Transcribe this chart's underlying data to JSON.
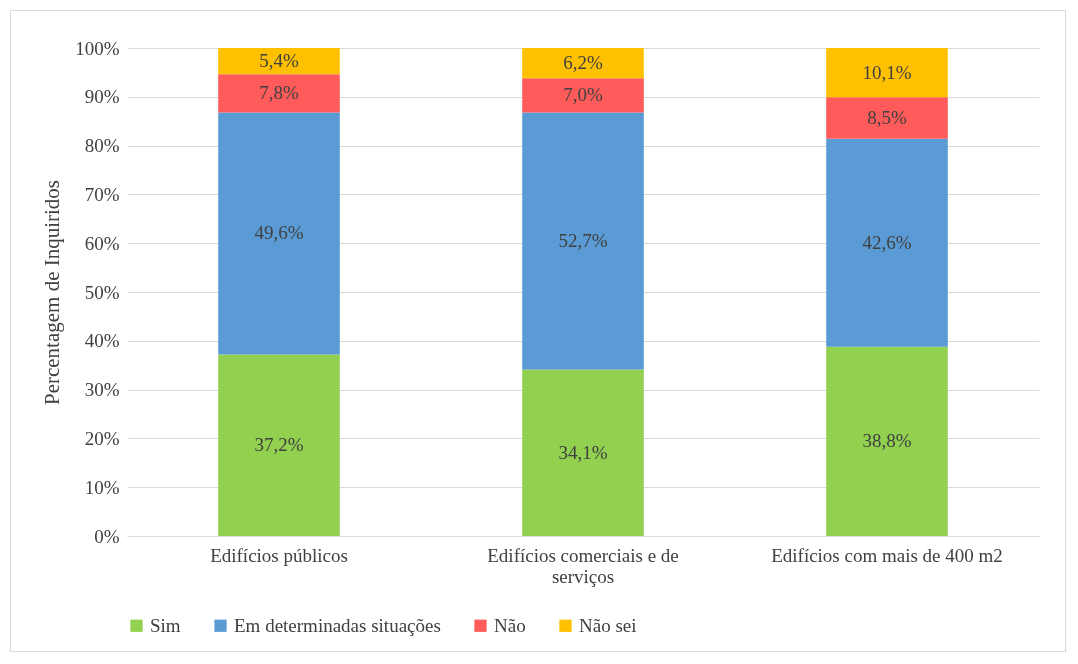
{
  "chart_data": {
    "type": "bar",
    "stacked": true,
    "ylabel": "Percentagem de Inquiridos",
    "categories": [
      "Edifícios públicos",
      "Edifícios comerciais e de serviços",
      "Edifícios com mais de 400 m2"
    ],
    "series": [
      {
        "name": "Sim",
        "color": "#92d050",
        "values": [
          37.2,
          34.1,
          38.8
        ],
        "value_labels": [
          "37,2%",
          "34,1%",
          "38,8%"
        ]
      },
      {
        "name": "Em determinadas situações",
        "color": "#5b9bd5",
        "values": [
          49.6,
          52.7,
          42.6
        ],
        "value_labels": [
          "49,6%",
          "52,7%",
          "42,6%"
        ]
      },
      {
        "name": "Não",
        "color": "#ff5b5b",
        "values": [
          7.8,
          7.0,
          8.5
        ],
        "value_labels": [
          "7,8%",
          "7,0%",
          "8,5%"
        ]
      },
      {
        "name": "Não sei",
        "color": "#ffc000",
        "values": [
          5.4,
          6.2,
          10.1
        ],
        "value_labels": [
          "5,4%",
          "6,2%",
          "10,1%"
        ]
      }
    ],
    "ylim": [
      0,
      100
    ],
    "yticks": [
      {
        "value": 0,
        "label": "0%"
      },
      {
        "value": 10,
        "label": "10%"
      },
      {
        "value": 20,
        "label": "20%"
      },
      {
        "value": 30,
        "label": "30%"
      },
      {
        "value": 40,
        "label": "40%"
      },
      {
        "value": 50,
        "label": "50%"
      },
      {
        "value": 60,
        "label": "60%"
      },
      {
        "value": 70,
        "label": "70%"
      },
      {
        "value": 80,
        "label": "80%"
      },
      {
        "value": 90,
        "label": "90%"
      },
      {
        "value": 100,
        "label": "100%"
      }
    ],
    "grid": "y",
    "legend": "bottom"
  }
}
